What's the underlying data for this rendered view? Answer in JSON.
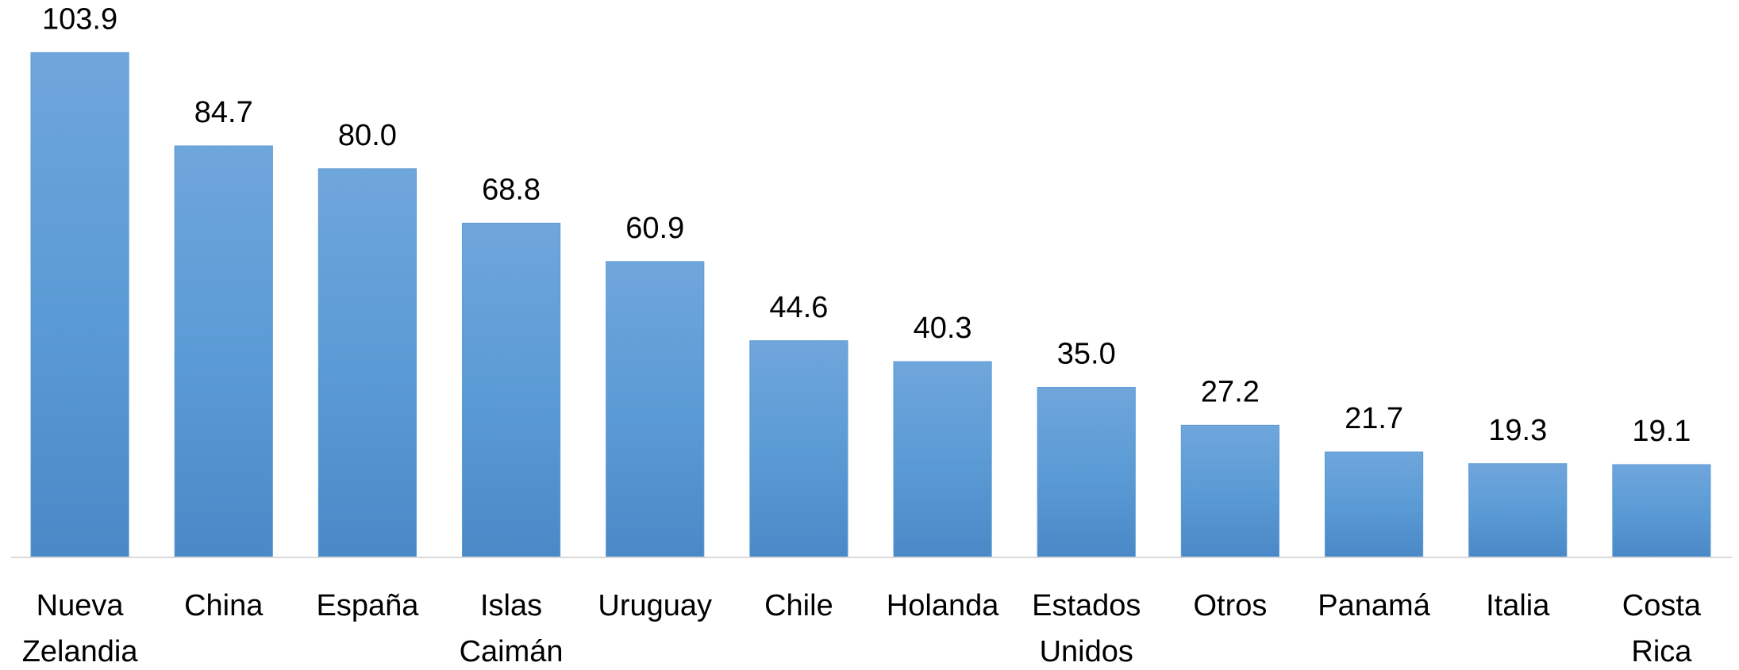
{
  "chart_data": {
    "type": "bar",
    "categories": [
      "Nueva Zelandia",
      "China",
      "España",
      "Islas Caimán",
      "Uruguay",
      "Chile",
      "Holanda",
      "Estados Unidos",
      "Otros",
      "Panamá",
      "Italia",
      "Costa Rica"
    ],
    "values": [
      103.9,
      84.7,
      80.0,
      68.8,
      60.9,
      44.6,
      40.3,
      35.0,
      27.2,
      21.7,
      19.3,
      19.1
    ],
    "value_labels": [
      "103.9",
      "84.7",
      "80.0",
      "68.8",
      "60.9",
      "44.6",
      "40.3",
      "35.0",
      "27.2",
      "21.7",
      "19.3",
      "19.1"
    ],
    "color": "#5b9bd5",
    "ylim": [
      0,
      110
    ]
  }
}
